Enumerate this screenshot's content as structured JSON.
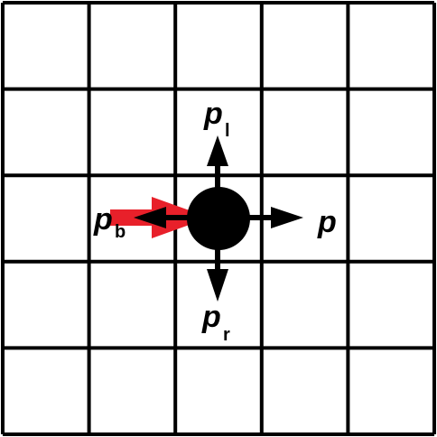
{
  "grid": {
    "rows": 5,
    "cols": 5,
    "line_color": "#000000"
  },
  "particle": {
    "color": "#000000"
  },
  "incoming_arrow": {
    "color": "#e8202a"
  },
  "momenta": {
    "forward": {
      "symbol": "p",
      "subscript": ""
    },
    "left": {
      "symbol": "p",
      "subscript": "l"
    },
    "right": {
      "symbol": "p",
      "subscript": "r"
    },
    "backward": {
      "symbol": "p",
      "subscript": "b"
    }
  }
}
